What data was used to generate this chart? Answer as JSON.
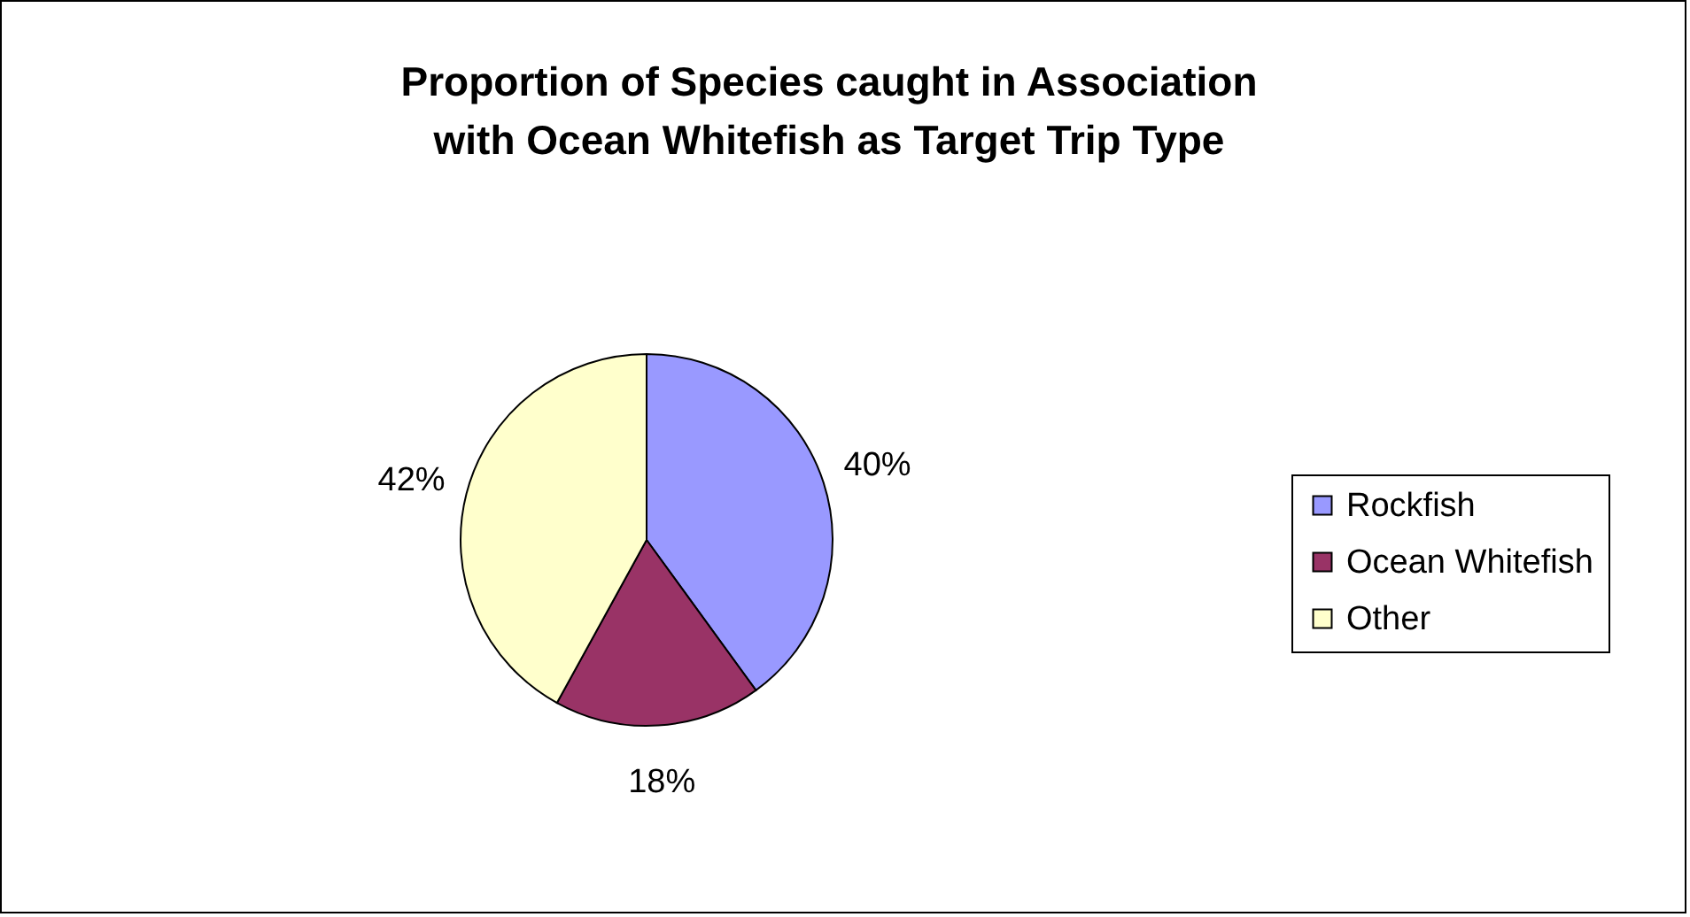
{
  "chart_data": {
    "type": "pie",
    "title": "Proportion of Species caught in Association with Ocean Whitefish as Target Trip Type",
    "categories": [
      "Rockfish",
      "Ocean Whitefish",
      "Other"
    ],
    "values": [
      40,
      18,
      42
    ],
    "colors": [
      "#9999ff",
      "#993366",
      "#ffffcc"
    ],
    "value_labels": [
      "40%",
      "18%",
      "42%"
    ],
    "legend": "right"
  }
}
